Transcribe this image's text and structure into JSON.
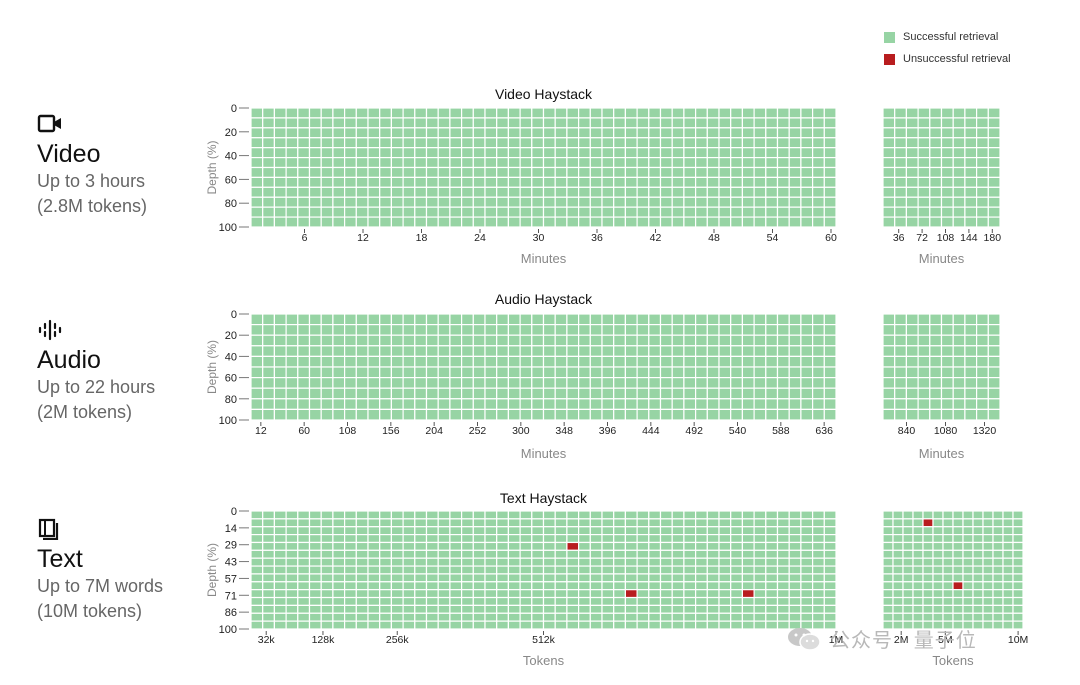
{
  "legend": {
    "success_label": "Successful retrieval",
    "fail_label": "Unsuccessful retrieval",
    "success_color": "#97d4a4",
    "fail_color": "#b81d1f"
  },
  "modalities": [
    {
      "icon": "video-camera-icon",
      "name": "Video",
      "line1": "Up to 3 hours",
      "line2": "(2.8M tokens)"
    },
    {
      "icon": "audio-waveform-icon",
      "name": "Audio",
      "line1": "Up to 22 hours",
      "line2": "(2M tokens)"
    },
    {
      "icon": "book-icon",
      "name": "Text",
      "line1": "Up to 7M words",
      "line2": "(10M tokens)"
    }
  ],
  "watermark": {
    "text": "公众号 · 量子位",
    "icon": "wechat-icon"
  },
  "chart_data": [
    {
      "type": "heatmap",
      "title": "Video Haystack",
      "ylabel": "Depth (%)",
      "y_ticks": [
        "0",
        "20",
        "40",
        "60",
        "80",
        "100"
      ],
      "rows": 12,
      "values": "all cells successful retrieval",
      "main_panel": {
        "xlabel": "Minutes",
        "x_ticks": [
          "6",
          "12",
          "18",
          "24",
          "30",
          "36",
          "42",
          "48",
          "54",
          "60"
        ],
        "cols": 50,
        "failures": []
      },
      "extended_panel": {
        "xlabel": "Minutes",
        "x_ticks": [
          "36",
          "72",
          "108",
          "144",
          "180"
        ],
        "cols": 10,
        "failures": []
      }
    },
    {
      "type": "heatmap",
      "title": "Audio Haystack",
      "ylabel": "Depth (%)",
      "y_ticks": [
        "0",
        "20",
        "40",
        "60",
        "80",
        "100"
      ],
      "rows": 10,
      "values": "all cells successful retrieval",
      "main_panel": {
        "xlabel": "Minutes",
        "x_ticks": [
          "12",
          "60",
          "108",
          "156",
          "204",
          "252",
          "300",
          "348",
          "396",
          "444",
          "492",
          "540",
          "588",
          "636"
        ],
        "cols": 50,
        "failures": []
      },
      "extended_panel": {
        "xlabel": "Minutes",
        "x_ticks": [
          "840",
          "1080",
          "1320"
        ],
        "cols": 10,
        "failures": []
      }
    },
    {
      "type": "heatmap",
      "title": "Text Haystack",
      "ylabel": "Depth (%)",
      "y_ticks": [
        "0",
        "14",
        "29",
        "43",
        "57",
        "71",
        "86",
        "100"
      ],
      "rows": 15,
      "values": "all cells successful retrieval except listed failures",
      "main_panel": {
        "xlabel": "Tokens",
        "x_ticks": [
          {
            "label": "32k",
            "pos": 0.026
          },
          {
            "label": "128k",
            "pos": 0.123
          },
          {
            "label": "256k",
            "pos": 0.25
          },
          {
            "label": "512k",
            "pos": 0.5
          },
          {
            "label": "1M",
            "pos": 1.0
          }
        ],
        "cols": 50,
        "failures": [
          {
            "x_index": 27,
            "depth_index": 4,
            "depth_pct": 29
          },
          {
            "x_index": 32,
            "depth_index": 10,
            "depth_pct": 71
          },
          {
            "x_index": 42,
            "depth_index": 10,
            "depth_pct": 71
          }
        ]
      },
      "extended_panel": {
        "xlabel": "Tokens",
        "x_ticks": [
          {
            "label": "2M",
            "pos": 0.13
          },
          {
            "label": "5M",
            "pos": 0.445
          },
          {
            "label": "10M",
            "pos": 0.965
          }
        ],
        "cols": 14,
        "failures": [
          {
            "x_index": 4,
            "depth_index": 1,
            "depth_pct": 14
          },
          {
            "x_index": 7,
            "depth_index": 9,
            "depth_pct": 71
          }
        ]
      }
    }
  ]
}
